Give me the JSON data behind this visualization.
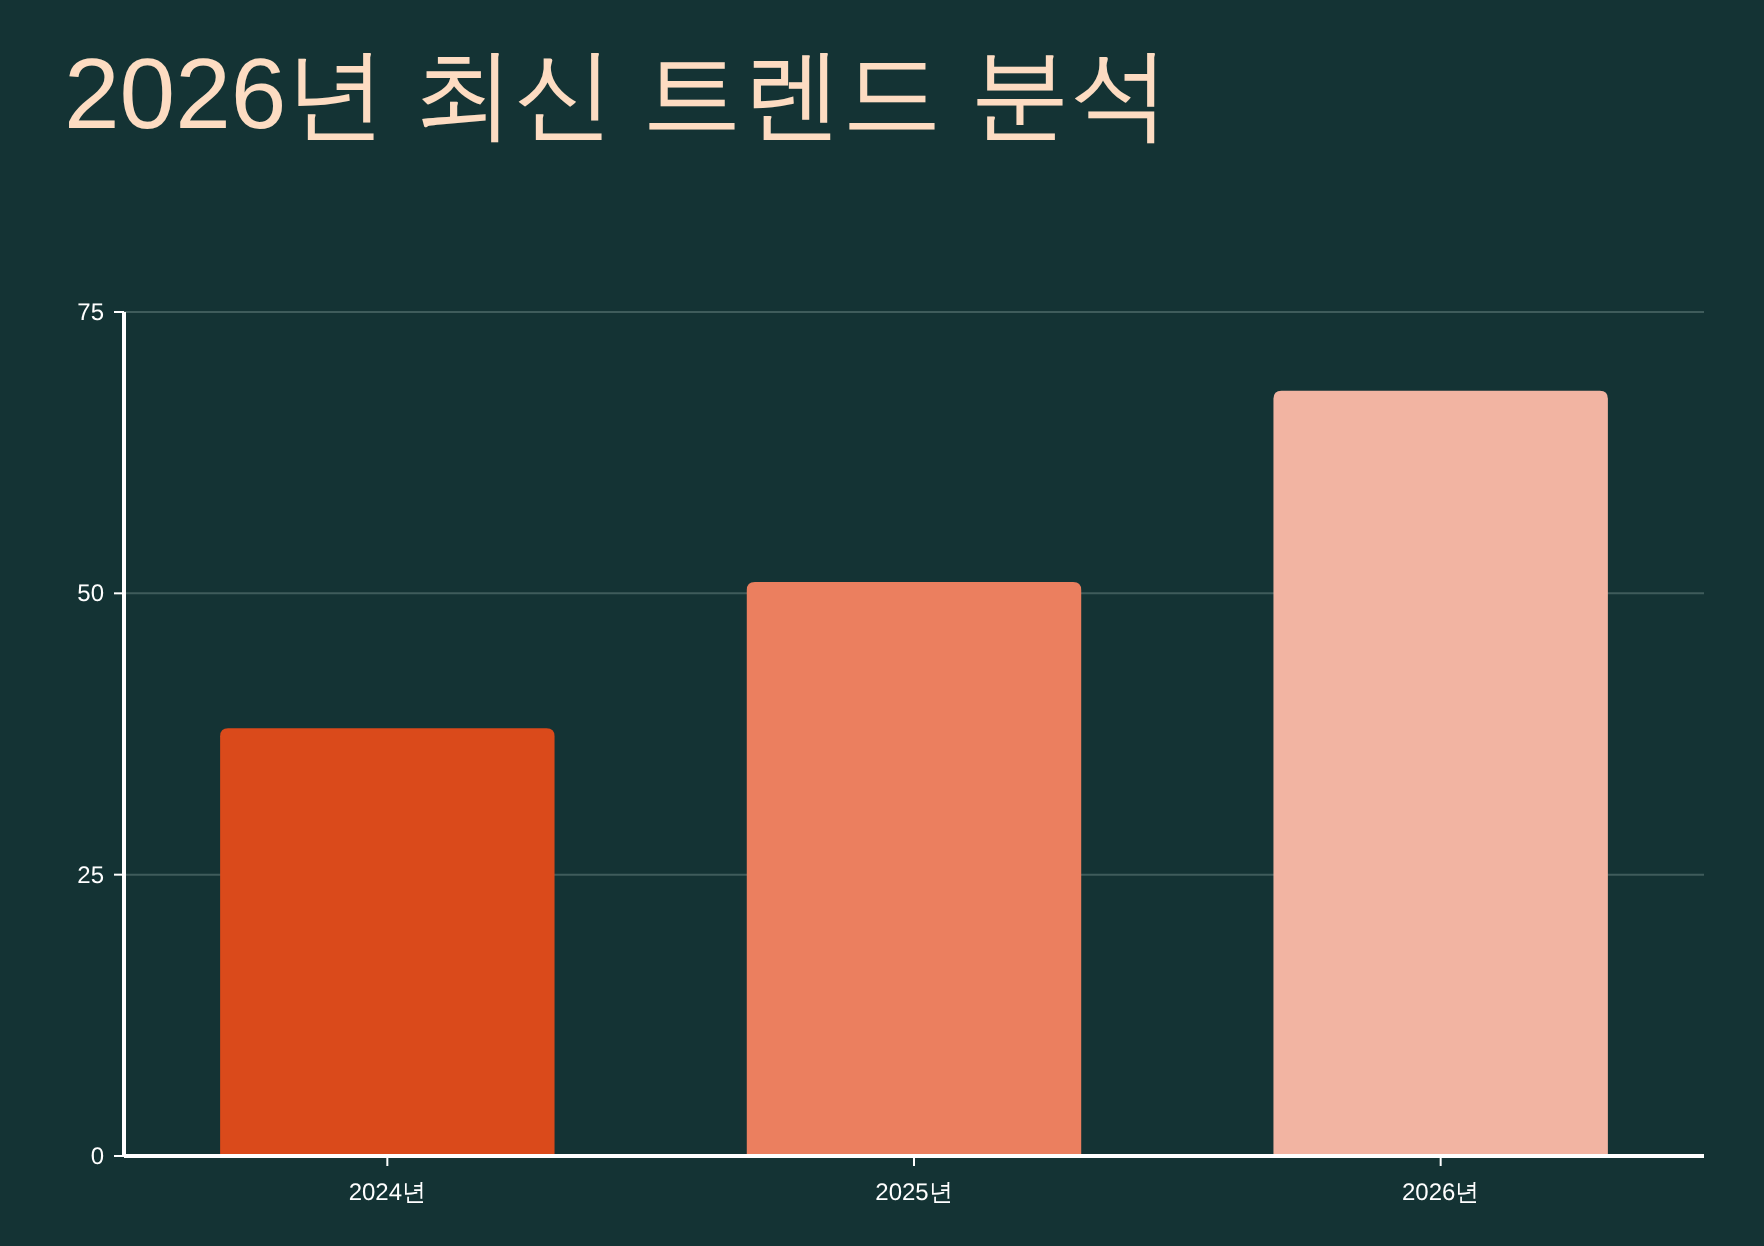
{
  "chart_data": {
    "type": "bar",
    "title": "2026년 최신 트렌드 분석",
    "categories": [
      "2024년",
      "2025년",
      "2026년"
    ],
    "values": [
      38,
      51,
      68
    ],
    "colors": [
      "#da4a1b",
      "#eb7f5f",
      "#f2b4a2"
    ],
    "ylim": [
      0,
      75
    ],
    "yticks": [
      0,
      25,
      50,
      75
    ],
    "grid": "y"
  }
}
